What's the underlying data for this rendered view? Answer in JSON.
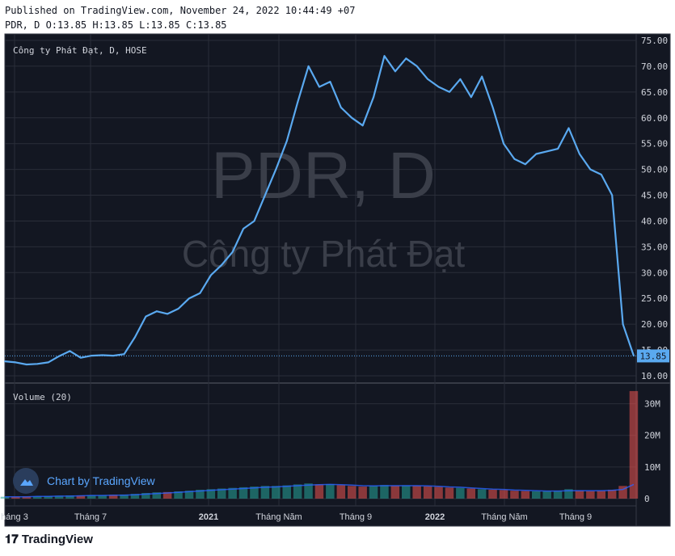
{
  "header": {
    "published": "Published on TradingView.com, November 24, 2022 10:44:49 +07",
    "ohlc": "PDR, D O:13.85 H:13.85 L:13.85 C:13.85"
  },
  "brand": {
    "name": "TradingView",
    "logo_icon": "tradingview-logo-icon"
  },
  "badge": {
    "label": "Chart by TradingView",
    "icon": "tradingview-cloud-icon"
  },
  "colors": {
    "background": "#131722",
    "line": "#5aa9f0",
    "grid": "#2a2e39",
    "axis_text": "#d1d4dc",
    "watermark": "#3a3e49",
    "vol_up": "#26a69a",
    "vol_down": "#ef5350",
    "vol_ma": "#2962ff"
  },
  "chart_data": {
    "type": "line",
    "symbol_label": "Công ty Phát Đạt, D, HOSE",
    "watermark_symbol": "PDR, D",
    "watermark_name": "Công ty Phát Đạt",
    "last_price_label": "13.85",
    "y_axis": {
      "ylim": [
        10,
        75
      ],
      "ticks": [
        "75.00",
        "70.00",
        "65.00",
        "60.00",
        "55.00",
        "50.00",
        "45.00",
        "40.00",
        "35.00",
        "30.00",
        "25.00",
        "20.00",
        "15.00",
        "10.00"
      ]
    },
    "x_axis": {
      "ticks": [
        "háng 3",
        "Tháng 7",
        "2021",
        "Tháng Năm",
        "Tháng 9",
        "2022",
        "Tháng Năm",
        "Tháng 9"
      ]
    },
    "series": [
      {
        "values": [
          12.8,
          12.6,
          12.2,
          12.3,
          12.6,
          13.8,
          14.8,
          13.5,
          13.9,
          14.0,
          13.9,
          14.2,
          17.5,
          21.5,
          22.5,
          22.0,
          23.0,
          25.0,
          26.0,
          29.5,
          31.5,
          34.0,
          38.5,
          40.0,
          45.0,
          50.0,
          55.5,
          63.0,
          70.0,
          66.0,
          67.0,
          62.0,
          60.0,
          58.5,
          64.0,
          72.0,
          69.0,
          71.5,
          70.0,
          67.5,
          66.0,
          65.0,
          67.5,
          64.0,
          68.0,
          62.0,
          55.0,
          52.0,
          51.0,
          53.0,
          53.5,
          54.0,
          58.0,
          53.0,
          50.0,
          49.0,
          45.0,
          20.0,
          13.85
        ]
      }
    ],
    "volume": {
      "label": "Volume (20)",
      "ticks": [
        "30M",
        "20M",
        "10M",
        "0"
      ],
      "ylim": [
        0,
        35
      ],
      "values": [
        0.6,
        0.6,
        0.7,
        0.7,
        0.8,
        0.9,
        1.0,
        1.0,
        1.1,
        1.1,
        1.2,
        1.3,
        1.5,
        1.8,
        2.0,
        2.1,
        2.3,
        2.5,
        2.8,
        3.0,
        3.2,
        3.4,
        3.6,
        3.8,
        4.0,
        4.0,
        4.2,
        4.5,
        4.8,
        4.5,
        4.6,
        4.3,
        4.0,
        3.8,
        4.0,
        4.3,
        4.1,
        4.2,
        4.1,
        3.9,
        3.7,
        3.5,
        3.4,
        3.2,
        3.0,
        2.8,
        2.7,
        2.5,
        2.4,
        2.3,
        2.3,
        2.4,
        3.0,
        2.6,
        2.4,
        2.5,
        2.8,
        4.0,
        34.0
      ],
      "ma_values": [
        0.6,
        0.6,
        0.6,
        0.7,
        0.7,
        0.8,
        0.8,
        0.9,
        1.0,
        1.0,
        1.1,
        1.1,
        1.2,
        1.4,
        1.6,
        1.8,
        2.0,
        2.2,
        2.4,
        2.6,
        2.8,
        3.0,
        3.2,
        3.4,
        3.6,
        3.7,
        3.9,
        4.1,
        4.3,
        4.4,
        4.5,
        4.4,
        4.3,
        4.1,
        4.0,
        4.1,
        4.1,
        4.1,
        4.1,
        4.0,
        3.9,
        3.7,
        3.6,
        3.4,
        3.2,
        3.0,
        2.9,
        2.7,
        2.6,
        2.5,
        2.4,
        2.4,
        2.5,
        2.5,
        2.5,
        2.5,
        2.6,
        2.9,
        4.5
      ]
    }
  }
}
